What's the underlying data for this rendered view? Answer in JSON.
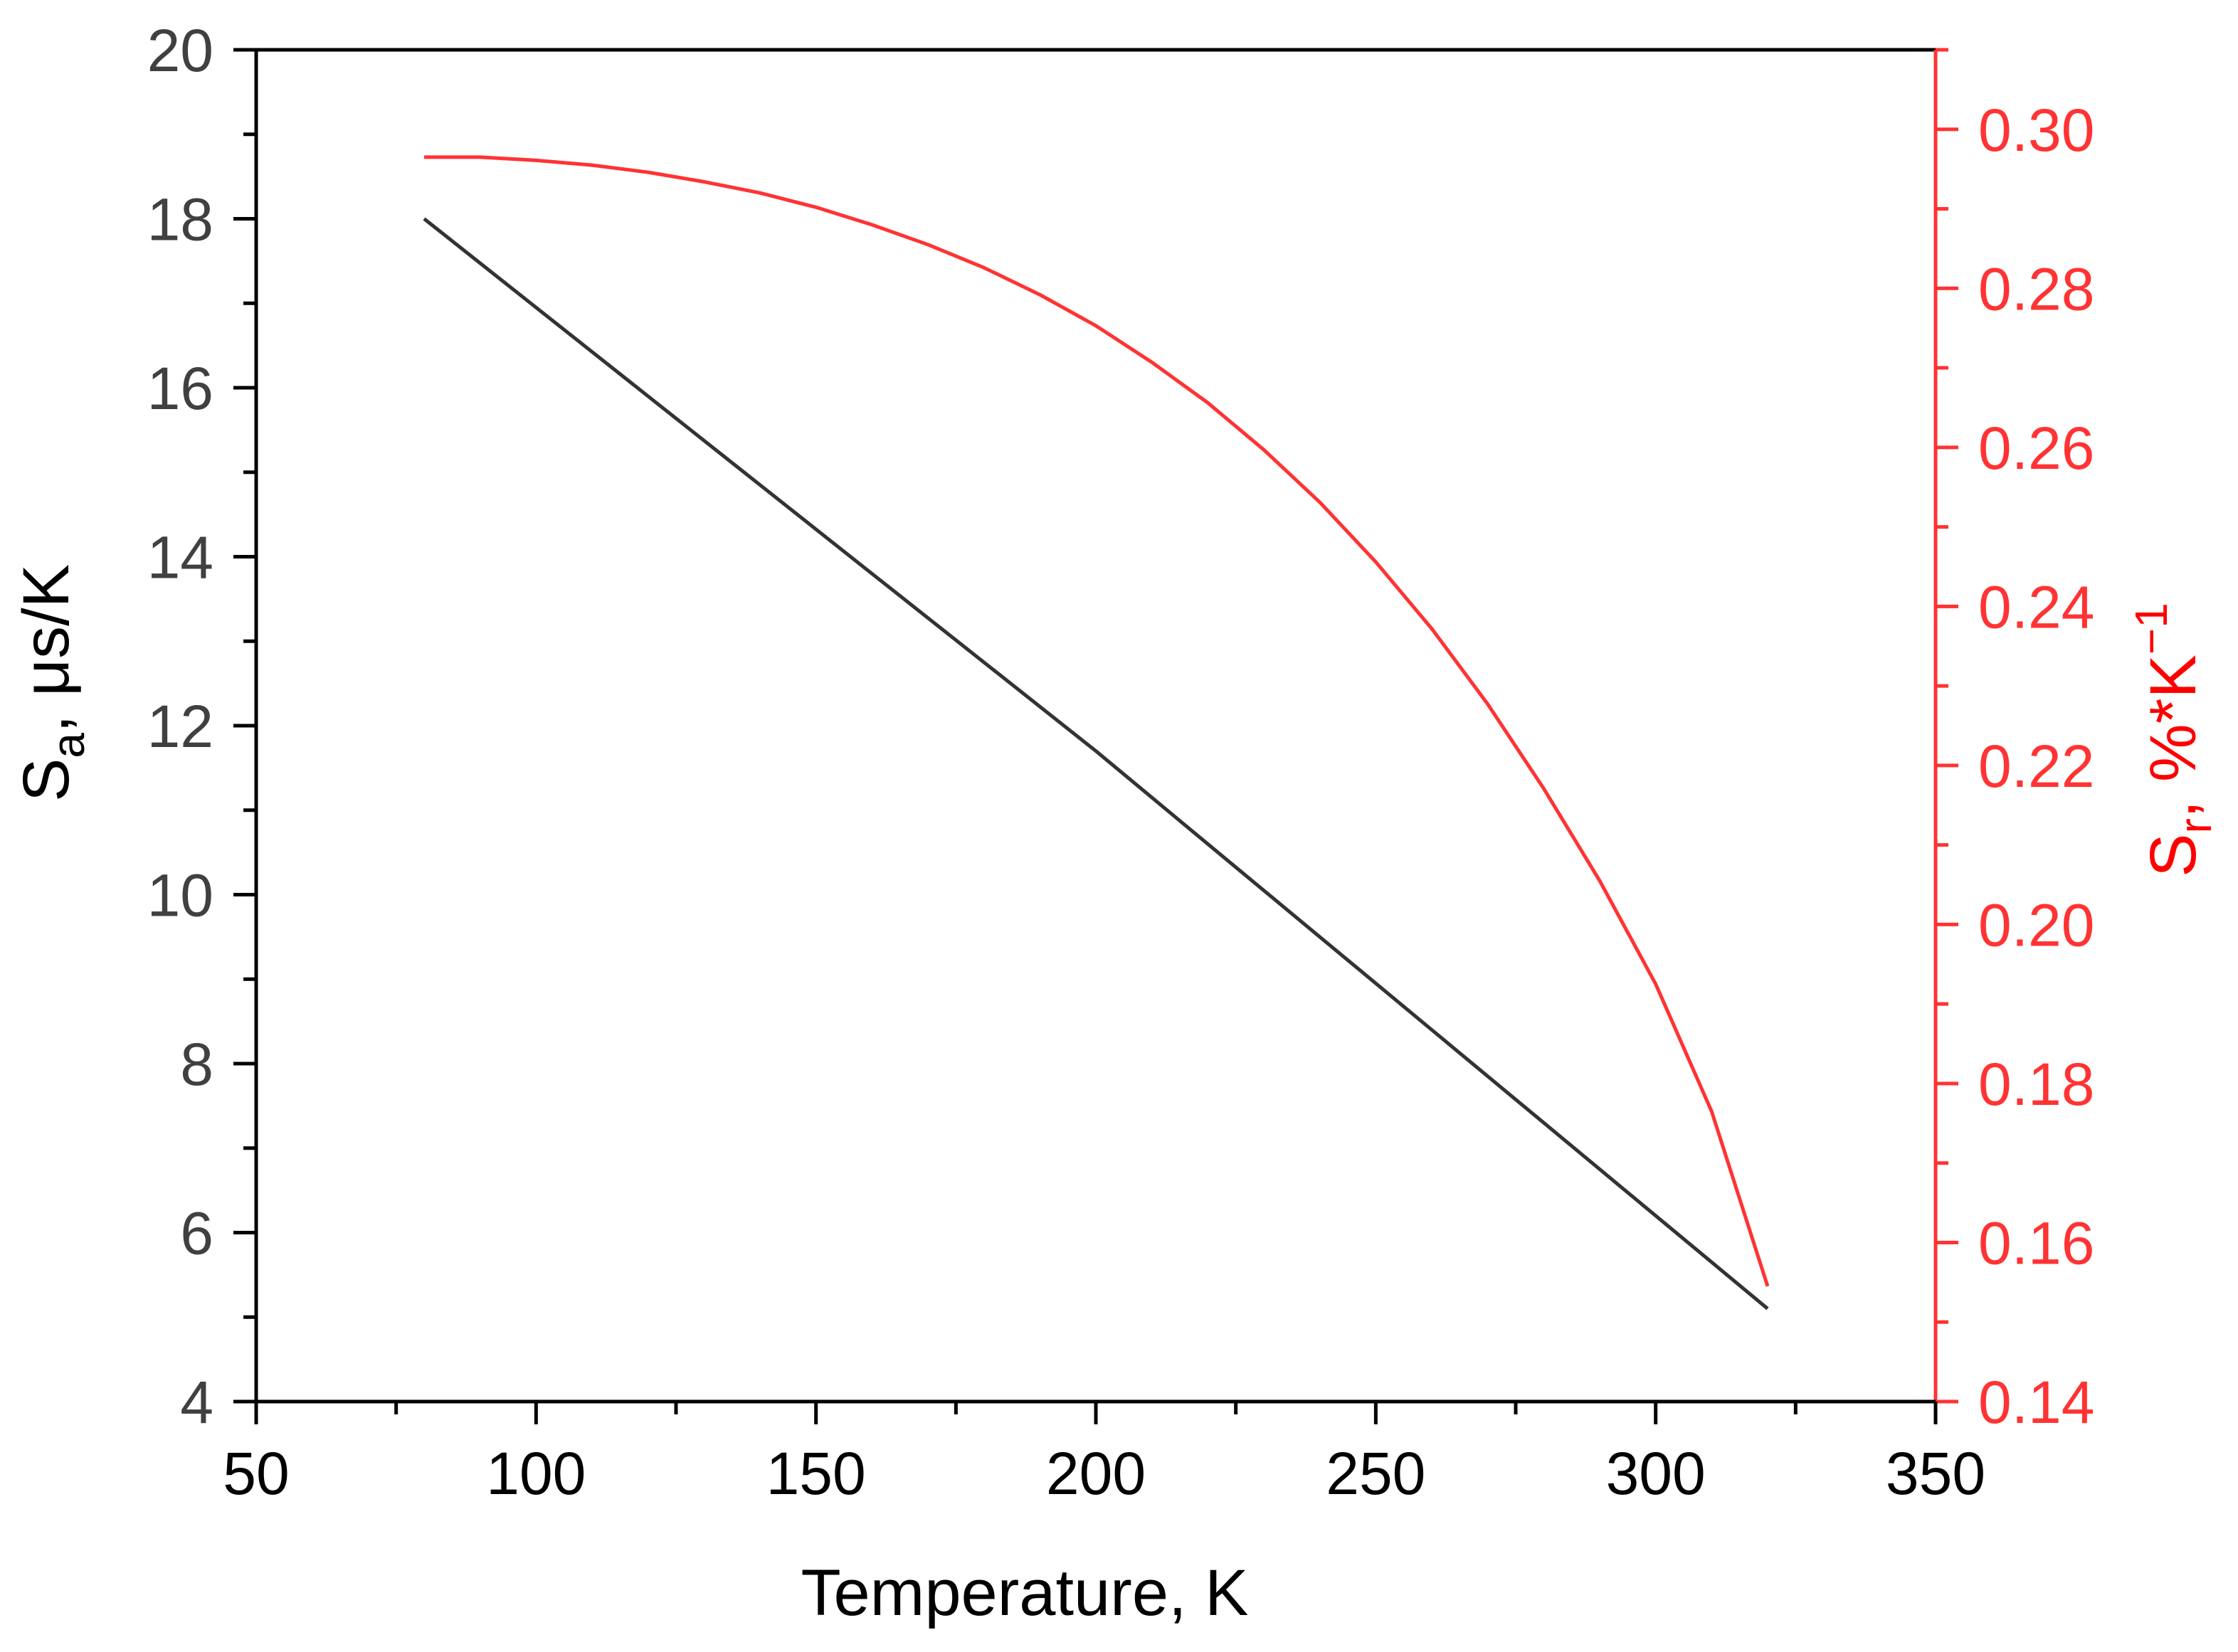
{
  "chart_data": {
    "type": "line",
    "xlabel": "Temperature, K",
    "xlim": [
      50,
      350
    ],
    "x_ticks": [
      "50",
      "100",
      "150",
      "200",
      "250",
      "300",
      "350"
    ],
    "y_left": {
      "label_main": "S",
      "label_sub": "a",
      "label_rest": ", μs/K",
      "ylim": [
        4,
        20
      ],
      "ticks": [
        "4",
        "6",
        "8",
        "10",
        "12",
        "14",
        "16",
        "18",
        "20"
      ],
      "color": "#000000",
      "tick_color": "#404040"
    },
    "y_right": {
      "label_main": "S",
      "label_sub": "r",
      "label_mid": ", %*K",
      "label_sup": "−1",
      "ylim": [
        0.14,
        0.31
      ],
      "ticks": [
        "0.14",
        "0.16",
        "0.18",
        "0.20",
        "0.22",
        "0.24",
        "0.26",
        "0.28",
        "0.30"
      ],
      "color": "#ff3333"
    },
    "series": [
      {
        "axis": "left",
        "color": "#333333",
        "x": [
          80,
          100,
          120,
          140,
          160,
          180,
          200,
          220,
          240,
          260,
          280,
          300,
          320
        ],
        "y": [
          18.0,
          16.95,
          15.9,
          14.85,
          13.8,
          12.75,
          11.7,
          10.6,
          9.5,
          8.4,
          7.3,
          6.2,
          5.1
        ]
      },
      {
        "axis": "right",
        "color": "#ff3333",
        "x": [
          80,
          90,
          100,
          110,
          120,
          130,
          140,
          150,
          160,
          170,
          180,
          190,
          200,
          210,
          220,
          230,
          240,
          250,
          260,
          270,
          280,
          290,
          300,
          310,
          320
        ],
        "y": [
          0.2965,
          0.2965,
          0.2961,
          0.2955,
          0.2946,
          0.2934,
          0.292,
          0.2902,
          0.288,
          0.2855,
          0.2826,
          0.2792,
          0.2753,
          0.2707,
          0.2656,
          0.2597,
          0.2531,
          0.2456,
          0.2372,
          0.2277,
          0.2171,
          0.2055,
          0.1925,
          0.1765,
          0.1545
        ]
      }
    ]
  }
}
